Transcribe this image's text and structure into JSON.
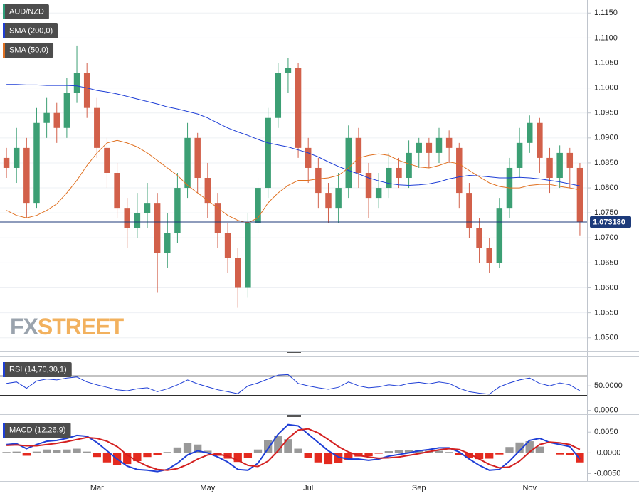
{
  "chart_data": [
    {
      "type": "candlestick",
      "title": "AUD/NZD",
      "title_color": "#2e9e7a",
      "categories": [
        null,
        null,
        null,
        null,
        null,
        null,
        null,
        null,
        null,
        "Mar",
        null,
        null,
        null,
        null,
        null,
        null,
        null,
        null,
        null,
        null,
        "May",
        null,
        null,
        null,
        null,
        null,
        null,
        null,
        null,
        null,
        "Jul",
        null,
        null,
        null,
        null,
        null,
        null,
        null,
        null,
        null,
        null,
        "Sep",
        null,
        null,
        null,
        null,
        null,
        null,
        null,
        null,
        null,
        null,
        "Nov",
        null,
        null,
        null,
        null,
        null
      ],
      "open": [
        1.086,
        1.084,
        1.088,
        1.077,
        1.093,
        1.095,
        1.092,
        1.099,
        1.103,
        1.096,
        1.088,
        1.083,
        1.076,
        1.072,
        1.075,
        1.077,
        1.067,
        1.071,
        1.08,
        1.09,
        1.082,
        1.077,
        1.071,
        1.066,
        1.06,
        1.073,
        1.08,
        1.094,
        1.103,
        1.104,
        1.088,
        1.084,
        1.079,
        1.076,
        1.08,
        1.09,
        1.083,
        1.078,
        1.08,
        1.084,
        1.082,
        1.087,
        1.089,
        1.087,
        1.09,
        1.088,
        1.079,
        1.072,
        1.068,
        1.065,
        1.076,
        1.084,
        1.089,
        1.093,
        1.086,
        1.082,
        1.087,
        1.084
      ],
      "high": [
        1.088,
        1.092,
        1.09,
        1.096,
        1.098,
        1.097,
        1.102,
        1.1085,
        1.105,
        1.098,
        1.09,
        1.085,
        1.078,
        1.079,
        1.081,
        1.079,
        1.075,
        1.083,
        1.093,
        1.091,
        1.085,
        1.079,
        1.073,
        1.068,
        1.075,
        1.082,
        1.096,
        1.105,
        1.106,
        1.105,
        1.09,
        1.086,
        1.081,
        1.083,
        1.0925,
        1.092,
        1.085,
        1.083,
        1.087,
        1.086,
        1.0895,
        1.09,
        1.09,
        1.092,
        1.0915,
        1.089,
        1.081,
        1.074,
        1.07,
        1.078,
        1.086,
        1.092,
        1.0945,
        1.094,
        1.088,
        1.0885,
        1.088,
        1.085
      ],
      "low": [
        1.082,
        1.081,
        1.074,
        1.076,
        1.09,
        1.089,
        1.09,
        1.097,
        1.094,
        1.086,
        1.08,
        1.074,
        1.068,
        1.07,
        1.072,
        1.059,
        1.064,
        1.069,
        1.078,
        1.079,
        1.074,
        1.068,
        1.063,
        1.056,
        1.058,
        1.071,
        1.078,
        1.092,
        1.099,
        1.086,
        1.081,
        1.076,
        1.073,
        1.073,
        1.078,
        1.08,
        1.074,
        1.076,
        1.078,
        1.08,
        1.08,
        1.084,
        1.084,
        1.085,
        1.085,
        1.076,
        1.07,
        1.065,
        1.063,
        1.064,
        1.074,
        1.082,
        1.087,
        1.083,
        1.079,
        1.08,
        1.08,
        1.0705
      ],
      "close": [
        1.084,
        1.088,
        1.077,
        1.093,
        1.095,
        1.092,
        1.099,
        1.103,
        1.096,
        1.088,
        1.083,
        1.076,
        1.072,
        1.075,
        1.077,
        1.067,
        1.071,
        1.08,
        1.09,
        1.082,
        1.077,
        1.071,
        1.066,
        1.06,
        1.073,
        1.08,
        1.094,
        1.103,
        1.104,
        1.088,
        1.084,
        1.079,
        1.076,
        1.08,
        1.09,
        1.083,
        1.078,
        1.08,
        1.084,
        1.082,
        1.087,
        1.089,
        1.087,
        1.09,
        1.088,
        1.079,
        1.072,
        1.068,
        1.065,
        1.076,
        1.084,
        1.089,
        1.093,
        1.086,
        1.082,
        1.087,
        1.084,
        1.0732
      ],
      "up_color": "#3c9f74",
      "down_color": "#d2604a",
      "series": [
        {
          "name": "SMA (200,0)",
          "color": "#1f3fd6",
          "values": [
            1.1007,
            1.1007,
            1.1006,
            1.1006,
            1.1005,
            1.1005,
            1.1005,
            1.1004,
            1.1,
            1.0995,
            1.0992,
            1.0988,
            1.0983,
            1.0978,
            1.0973,
            1.0968,
            1.0962,
            1.0958,
            1.0953,
            1.0948,
            1.094,
            1.093,
            1.092,
            1.0912,
            1.0905,
            1.0897,
            1.089,
            1.0886,
            1.0882,
            1.0876,
            1.087,
            1.0862,
            1.0852,
            1.0843,
            1.0835,
            1.0828,
            1.082,
            1.0814,
            1.0809,
            1.0806,
            1.0805,
            1.0806,
            1.0808,
            1.0812,
            1.0818,
            1.0822,
            1.0825,
            1.0824,
            1.0822,
            1.082,
            1.082,
            1.0821,
            1.082,
            1.0818,
            1.0815,
            1.0812,
            1.0808,
            1.0804
          ]
        },
        {
          "name": "SMA (50,0)",
          "color": "#e07020",
          "values": [
            1.0755,
            1.0745,
            1.074,
            1.0745,
            1.0755,
            1.0768,
            1.079,
            1.0815,
            1.0845,
            1.087,
            1.089,
            1.0895,
            1.089,
            1.0882,
            1.087,
            1.0855,
            1.084,
            1.0825,
            1.0805,
            1.079,
            1.0775,
            1.076,
            1.0745,
            1.0735,
            1.073,
            1.074,
            1.077,
            1.079,
            1.0805,
            1.0815,
            1.0815,
            1.0818,
            1.082,
            1.0825,
            1.084,
            1.086,
            1.0865,
            1.0868,
            1.0865,
            1.0855,
            1.0848,
            1.0842,
            1.084,
            1.0845,
            1.0852,
            1.0848,
            1.0835,
            1.0822,
            1.081,
            1.0803,
            1.08,
            1.08,
            1.0805,
            1.0807,
            1.0807,
            1.0803,
            1.08,
            1.0796
          ]
        }
      ],
      "last_price": {
        "value": 1.07318,
        "label": "1.073180"
      },
      "last_price_color": "#1c3a7a",
      "ylim": [
        1.0474,
        1.1176
      ],
      "yticks": [
        {
          "value": 1.05,
          "label": "1.0500"
        },
        {
          "value": 1.055,
          "label": "1.0550"
        },
        {
          "value": 1.06,
          "label": "1.0600"
        },
        {
          "value": 1.065,
          "label": "1.0650"
        },
        {
          "value": 1.07,
          "label": "1.0700"
        },
        {
          "value": 1.075,
          "label": "1.0750"
        },
        {
          "value": 1.08,
          "label": "1.0800"
        },
        {
          "value": 1.085,
          "label": "1.0850"
        },
        {
          "value": 1.09,
          "label": "1.0900"
        },
        {
          "value": 1.095,
          "label": "1.0950"
        },
        {
          "value": 1.1,
          "label": "1.1000"
        },
        {
          "value": 1.105,
          "label": "1.1050"
        },
        {
          "value": 1.11,
          "label": "1.1100"
        },
        {
          "value": 1.115,
          "label": "1.1150"
        }
      ],
      "grid": true,
      "watermark": [
        "FX",
        "STREET"
      ]
    },
    {
      "type": "line",
      "title": "RSI (14,70,30,1)",
      "color": "#1f3fd6",
      "values": [
        55,
        58,
        45,
        60,
        64,
        62,
        66,
        68,
        58,
        52,
        47,
        42,
        40,
        44,
        46,
        38,
        44,
        52,
        62,
        54,
        48,
        42,
        38,
        34,
        50,
        56,
        64,
        72,
        73,
        55,
        50,
        46,
        43,
        47,
        58,
        50,
        46,
        48,
        52,
        50,
        55,
        57,
        54,
        58,
        55,
        45,
        38,
        35,
        33,
        48,
        56,
        62,
        66,
        55,
        50,
        56,
        52,
        40
      ],
      "levels": [
        70,
        30
      ],
      "ylim": [
        -8,
        110
      ],
      "yticks": [
        {
          "value": 0,
          "label": "0.0000"
        },
        {
          "value": 50,
          "label": "50.0000"
        }
      ]
    },
    {
      "type": "macd",
      "title": "MACD (12,26,9)",
      "series": [
        {
          "color": "#1f3fd6",
          "values": [
            0.002,
            0.0022,
            0.001,
            0.002,
            0.0028,
            0.003,
            0.0035,
            0.0042,
            0.004,
            0.0025,
            0.0005,
            -0.0015,
            -0.0032,
            -0.004,
            -0.0042,
            -0.0045,
            -0.004,
            -0.0025,
            -0.0005,
            0.0005,
            0.0,
            -0.001,
            -0.0022,
            -0.004,
            -0.0042,
            -0.0025,
            0.001,
            0.0045,
            0.0068,
            0.0065,
            0.0045,
            0.0025,
            0.0005,
            -0.001,
            -0.0015,
            -0.0015,
            -0.0018,
            -0.0015,
            -0.0008,
            -0.0004,
            0.0,
            0.0005,
            0.0008,
            0.0012,
            0.0012,
            0.0002,
            -0.0015,
            -0.003,
            -0.0042,
            -0.004,
            -0.002,
            0.0005,
            0.003,
            0.0035,
            0.0025,
            0.002,
            0.0015,
            -0.0015
          ]
        },
        {
          "color": "#d42020",
          "values": [
            0.0018,
            0.0019,
            0.0017,
            0.0017,
            0.002,
            0.0023,
            0.0027,
            0.0032,
            0.0037,
            0.0035,
            0.0028,
            0.0015,
            -0.0005,
            -0.002,
            -0.0032,
            -0.004,
            -0.0042,
            -0.0038,
            -0.0028,
            -0.0015,
            -0.0005,
            -0.0003,
            -0.0008,
            -0.0018,
            -0.003,
            -0.0033,
            -0.002,
            0.0005,
            0.0035,
            0.0055,
            0.0058,
            0.0048,
            0.0032,
            0.0015,
            0.0002,
            -0.0006,
            -0.001,
            -0.0013,
            -0.0012,
            -0.001,
            -0.0006,
            -0.0002,
            0.0003,
            0.0007,
            0.001,
            0.0008,
            -0.0002,
            -0.0015,
            -0.0028,
            -0.0036,
            -0.0034,
            -0.002,
            0.0002,
            0.002,
            0.0026,
            0.0024,
            0.002,
            0.0008
          ]
        }
      ],
      "histogram": [
        0.0002,
        0.0003,
        -0.0007,
        0.0003,
        0.0008,
        0.0007,
        0.0008,
        0.001,
        0.0003,
        -0.001,
        -0.0023,
        -0.003,
        -0.0027,
        -0.002,
        -0.001,
        -0.0005,
        0.0002,
        0.0013,
        0.0023,
        0.002,
        0.0005,
        -0.0007,
        -0.0014,
        -0.0022,
        -0.0012,
        0.0008,
        0.003,
        0.004,
        0.0033,
        0.001,
        -0.0013,
        -0.0023,
        -0.0027,
        -0.0025,
        -0.0017,
        -0.0009,
        -0.0008,
        -0.0002,
        0.0004,
        0.0006,
        0.0006,
        0.0007,
        0.0005,
        0.0005,
        0.0002,
        -0.0006,
        -0.0013,
        -0.0015,
        -0.0014,
        -0.0004,
        0.0014,
        0.0025,
        0.0028,
        0.0015,
        -0.0001,
        -0.0004,
        -0.0005,
        -0.0023
      ],
      "pos_color": "#999999",
      "neg_color": "#e42a1f",
      "ylim": [
        -0.0068,
        0.0083
      ],
      "yticks": [
        {
          "value": 0.005,
          "label": "0.0050"
        },
        {
          "value": 0,
          "label": "-0.0000"
        },
        {
          "value": -0.005,
          "label": "-0.0050"
        }
      ]
    }
  ]
}
